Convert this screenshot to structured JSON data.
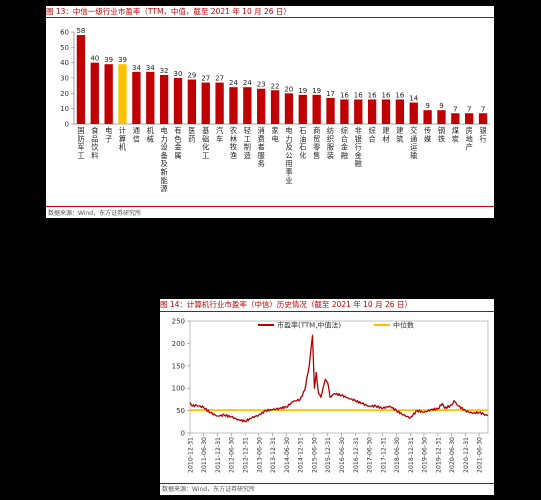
{
  "fig13": {
    "title": "图 13：中信一级行业市盈率（TTM，中值，截至 2021 年 10 月 26 日）",
    "source": "数据来源：Wind，东方证券研究所"
  },
  "fig14": {
    "title": "图 14：计算机行业市盈率（中信）历史情况（截至 2021 年 10 月 26 日）",
    "source": "数据来源：Wind，东方证券研究所"
  },
  "colors": {
    "bar": "#c00000",
    "highlight": "#ffc000",
    "line": "#b00000",
    "median": "#ffc000"
  },
  "chart_data": [
    {
      "type": "bar",
      "categories": [
        "国防军工",
        "食品饮料",
        "电子",
        "计算机",
        "通信",
        "机械",
        "电力设备及新能源",
        "有色金属",
        "医药",
        "基础化工",
        "汽车",
        "农林牧渔",
        "轻工制造",
        "消费者服务",
        "家电",
        "电力及公用事业",
        "石油石化",
        "商贸零售",
        "纺织服装",
        "综合金融",
        "非银行金融",
        "综合",
        "建材",
        "建筑",
        "交通运输",
        "传媒",
        "钢铁",
        "煤炭",
        "房地产",
        "银行"
      ],
      "values": [
        58,
        40,
        39,
        39,
        34,
        34,
        32,
        30,
        29,
        27,
        27,
        24,
        24,
        23,
        22,
        20,
        19,
        19,
        17,
        16,
        16,
        16,
        16,
        16,
        14,
        9,
        9,
        7,
        7,
        7
      ],
      "highlight_index": 3,
      "ylim": [
        0,
        60
      ],
      "yticks": [
        0,
        10,
        20,
        30,
        40,
        50,
        60
      ]
    },
    {
      "type": "line",
      "series": [
        {
          "name": "市盈率(TTM,中值法)",
          "role": "pe"
        },
        {
          "name": "中位数",
          "role": "median",
          "value": 51
        }
      ],
      "x_ticks": [
        "2010-12-31",
        "2011-06-30",
        "2011-12-31",
        "2012-06-30",
        "2012-12-31",
        "2013-06-30",
        "2013-12-31",
        "2014-06-30",
        "2014-12-31",
        "2015-06-30",
        "2015-12-31",
        "2016-06-30",
        "2016-12-31",
        "2017-06-30",
        "2017-12-31",
        "2018-06-30",
        "2018-12-31",
        "2019-06-30",
        "2019-12-31",
        "2020-06-30",
        "2020-12-31",
        "2021-06-30"
      ],
      "x_range": [
        "2010-12-31",
        "2021-10-26"
      ],
      "ylim": [
        0,
        250
      ],
      "yticks": [
        0,
        50,
        100,
        150,
        200,
        250
      ],
      "pe_points": [
        [
          "2010-12-31",
          68
        ],
        [
          "2011-01-31",
          60
        ],
        [
          "2011-03-31",
          62
        ],
        [
          "2011-06-30",
          57
        ],
        [
          "2011-09-30",
          45
        ],
        [
          "2011-12-31",
          38
        ],
        [
          "2012-03-31",
          40
        ],
        [
          "2012-06-30",
          36
        ],
        [
          "2012-09-30",
          30
        ],
        [
          "2012-12-31",
          26
        ],
        [
          "2013-03-31",
          34
        ],
        [
          "2013-06-30",
          40
        ],
        [
          "2013-09-30",
          50
        ],
        [
          "2013-12-31",
          52
        ],
        [
          "2014-03-31",
          55
        ],
        [
          "2014-06-30",
          58
        ],
        [
          "2014-09-30",
          70
        ],
        [
          "2014-12-31",
          75
        ],
        [
          "2015-02-28",
          95
        ],
        [
          "2015-04-30",
          150
        ],
        [
          "2015-06-12",
          218
        ],
        [
          "2015-07-08",
          100
        ],
        [
          "2015-07-31",
          135
        ],
        [
          "2015-08-31",
          88
        ],
        [
          "2015-09-30",
          80
        ],
        [
          "2015-11-30",
          120
        ],
        [
          "2015-12-31",
          112
        ],
        [
          "2016-01-31",
          80
        ],
        [
          "2016-03-31",
          88
        ],
        [
          "2016-06-30",
          84
        ],
        [
          "2016-09-30",
          78
        ],
        [
          "2016-12-31",
          72
        ],
        [
          "2017-03-31",
          66
        ],
        [
          "2017-06-30",
          60
        ],
        [
          "2017-09-30",
          60
        ],
        [
          "2017-12-31",
          55
        ],
        [
          "2018-03-31",
          60
        ],
        [
          "2018-06-30",
          50
        ],
        [
          "2018-09-30",
          40
        ],
        [
          "2018-12-31",
          34
        ],
        [
          "2019-03-31",
          50
        ],
        [
          "2019-06-30",
          46
        ],
        [
          "2019-09-30",
          52
        ],
        [
          "2019-12-31",
          54
        ],
        [
          "2020-02-28",
          66
        ],
        [
          "2020-03-31",
          55
        ],
        [
          "2020-06-30",
          62
        ],
        [
          "2020-07-31",
          72
        ],
        [
          "2020-09-30",
          60
        ],
        [
          "2020-12-31",
          50
        ],
        [
          "2021-03-31",
          44
        ],
        [
          "2021-06-30",
          46
        ],
        [
          "2021-08-31",
          42
        ],
        [
          "2021-10-26",
          39
        ]
      ]
    }
  ]
}
